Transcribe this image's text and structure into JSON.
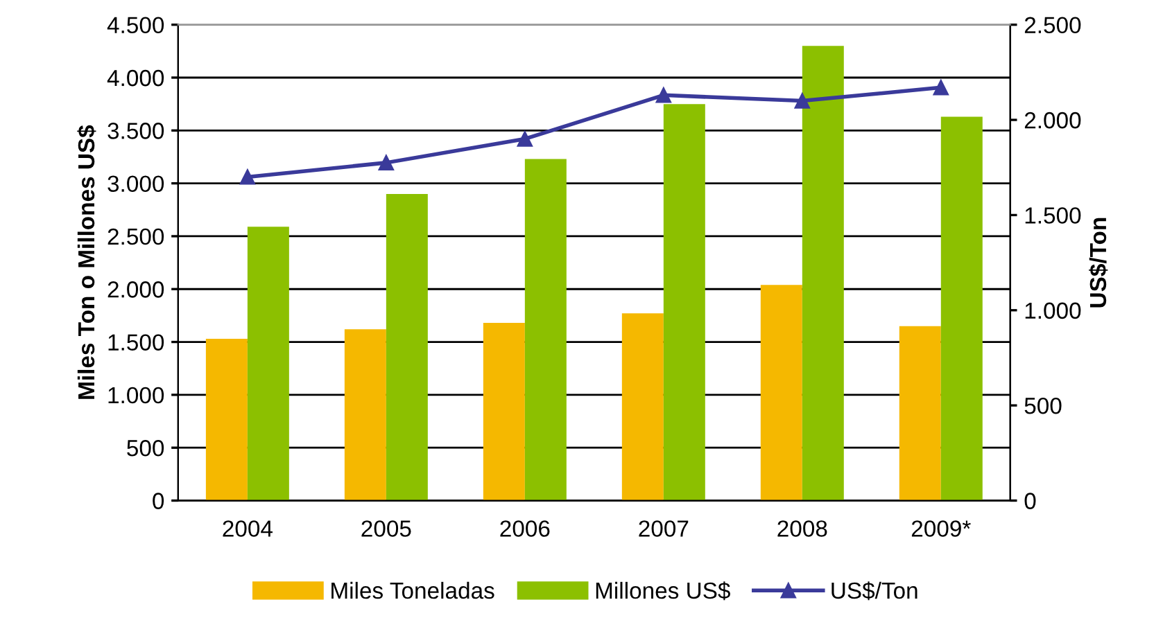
{
  "chart_data": {
    "type": "bar",
    "ylabel": "Miles Ton o Millones US$",
    "y2label": "US$/Ton",
    "categories": [
      "2004",
      "2005",
      "2006",
      "2007",
      "2008",
      "2009*"
    ],
    "series": [
      {
        "name": "Miles Toneladas",
        "color": "#f5b800",
        "values": [
          1530,
          1620,
          1680,
          1770,
          2040,
          1650
        ]
      },
      {
        "name": "Millones US$",
        "color": "#8cc000",
        "values": [
          2590,
          2900,
          3230,
          3750,
          4300,
          3630
        ]
      },
      {
        "name": "US$/Ton",
        "type": "line",
        "axis": "y2",
        "color": "#3a3a9a",
        "marker": "triangle",
        "values": [
          1700,
          1775,
          1900,
          2130,
          2100,
          2170
        ]
      }
    ],
    "ylim": [
      0,
      4500
    ],
    "yticks": [
      0,
      500,
      {
        "value": 1000,
        "label": "1.000"
      },
      {
        "value": 1500,
        "label": "1.500"
      },
      {
        "value": 2000,
        "label": "2.000"
      },
      {
        "value": 2500,
        "label": "2.500"
      },
      {
        "value": 3000,
        "label": "3.000"
      },
      {
        "value": 3500,
        "label": "3.500"
      },
      {
        "value": 4000,
        "label": "4.000"
      },
      {
        "value": 4500,
        "label": "4.500"
      }
    ],
    "y2lim": [
      0,
      2500
    ],
    "y2ticks": [
      0,
      500,
      {
        "value": 1000,
        "label": "1.000"
      },
      {
        "value": 1500,
        "label": "1.500"
      },
      {
        "value": 2000,
        "label": "2.000"
      },
      {
        "value": 2500,
        "label": "2.500"
      }
    ],
    "grid": "y",
    "legend": "bottom"
  }
}
